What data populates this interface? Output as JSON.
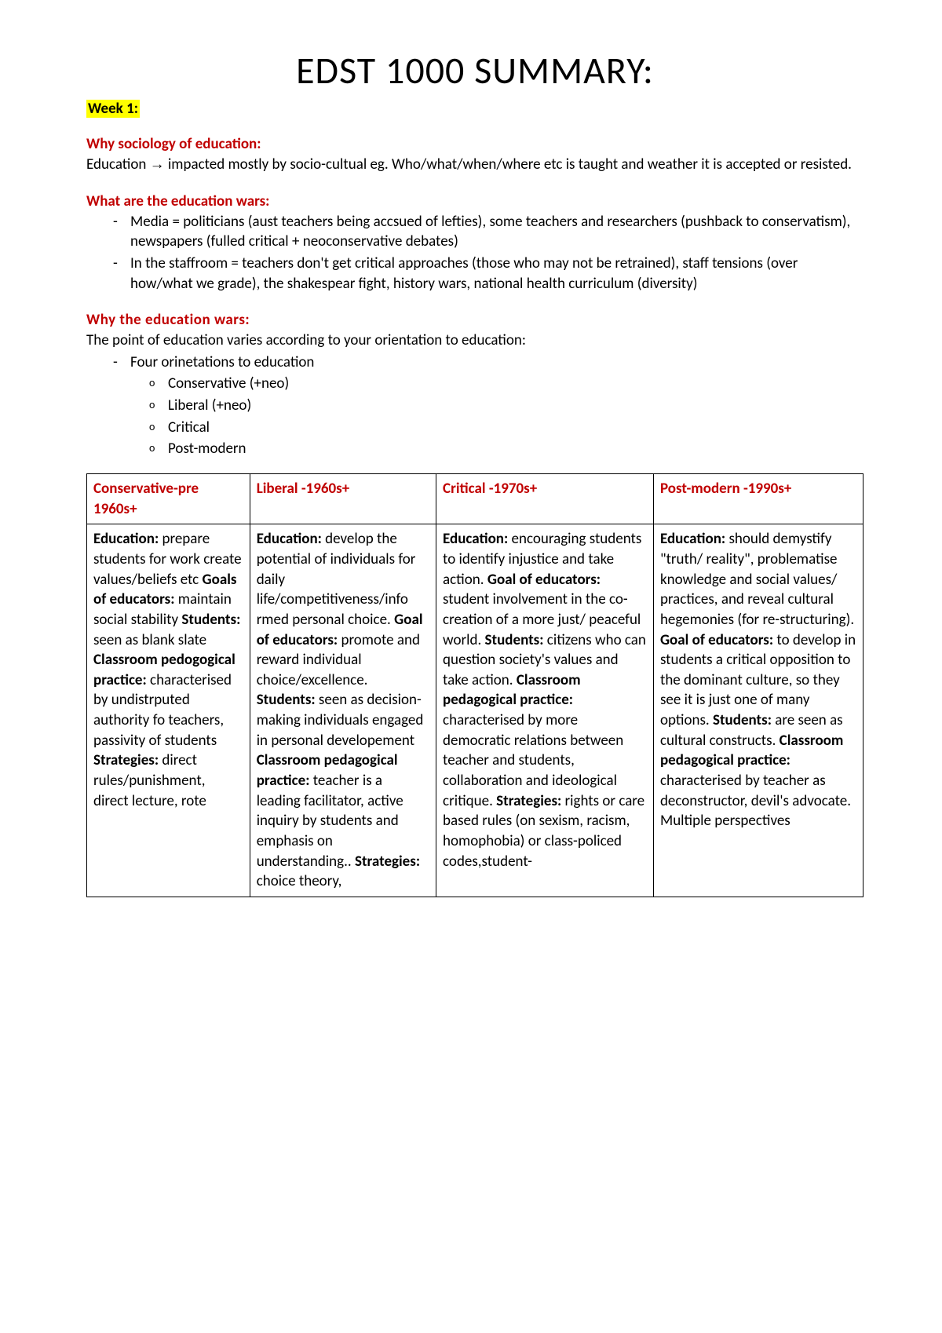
{
  "title": "EDST 1000 SUMMARY:",
  "week_label": "Week 1:",
  "sections": {
    "why_sociology": {
      "heading": "Why sociology of education:",
      "body_pre": "Education ",
      "arrow": "→",
      "body_post": " impacted mostly by socio-cultual eg. Who/what/when/where etc is taught and weather it is accepted or resisted."
    },
    "what_wars": {
      "heading": "What are the education wars:",
      "bullets": [
        "Media = politicians (aust teachers being accsued of lefties), some teachers and researchers (pushback to conservatism), newspapers (fulled critical + neoconservative debates)",
        "In the staffroom = teachers don't get critical approaches (those who may not be retrained), staff tensions (over how/what we grade), the shakespear fight, history wars, national health curriculum (diversity)"
      ]
    },
    "why_wars": {
      "heading": "Why the education wars:",
      "intro": "The point of education varies according to your orientation to education:",
      "bullet": "Four orinetations to education",
      "subbullets": [
        "Conservative (+neo)",
        "Liberal (+neo)",
        "Critical",
        "Post-modern"
      ]
    }
  },
  "table": {
    "headers": [
      "Conservative-pre 1960s+",
      "Liberal -1960s+",
      "Critical -1970s+",
      "Post-modern -1990s+"
    ],
    "cells": {
      "c1": {
        "parts": [
          {
            "b": "Education:",
            "t": " prepare students for work create values/beliefs etc"
          },
          {
            "b": "Goals of educators:",
            "t": " maintain social stability"
          },
          {
            "b": "Students:",
            "t": " seen as blank slate"
          },
          {
            "b": "Classroom pedogogical practice:",
            "t": " characterised by undistrputed authority fo teachers, passivity of students"
          },
          {
            "b": "Strategies:",
            "t": " direct rules/punishment, direct lecture, rote"
          }
        ]
      },
      "c2": {
        "parts": [
          {
            "b": "Education:",
            "t": " develop the potential of individuals for daily life/competitiveness/info rmed personal choice."
          },
          {
            "b": "Goal of educators:",
            "t": " promote and reward individual choice/excellence."
          },
          {
            "b": "Students:",
            "t": " seen as decision-making individuals engaged in personal developement"
          },
          {
            "b": "Classroom pedagogical practice:",
            "t": " teacher is a leading facilitator, active inquiry by students and emphasis on understanding.."
          },
          {
            "b": "Strategies:",
            "t": " choice theory,"
          }
        ]
      },
      "c3": {
        "parts": [
          {
            "b": "Education:",
            "t": " encouraging students to identify injustice and take action."
          },
          {
            "b": "Goal of educators:",
            "t": " student involvement in the co-creation of a more just/ peaceful world."
          },
          {
            "b": "Students:",
            "t": " citizens who can question society's values and take action."
          },
          {
            "b": "Classroom pedagogical practice:",
            "t": " characterised by more democratic relations between teacher and students, collaboration and ideological critique."
          },
          {
            "b": "Strategies:",
            "t": " rights or care based rules (on sexism, racism, homophobia) or class-policed codes,student-"
          }
        ]
      },
      "c4": {
        "parts": [
          {
            "b": "Education:",
            "t": " should demystify \"truth/ reality\", problematise knowledge and social values/ practices, and reveal cultural hegemonies (for re-structuring)."
          },
          {
            "b": "Goal of educators:",
            "t": " to develop in students a critical opposition to the dominant culture, so they see it is just one of many options."
          },
          {
            "b": "Students:",
            "t": " are seen as cultural constructs."
          },
          {
            "b": "Classroom pedagogical practice:",
            "t": " characterised by teacher as deconstructor, devil's advocate. Multiple perspectives"
          }
        ]
      }
    }
  },
  "colors": {
    "heading": "#c00000",
    "highlight": "#ffff00",
    "text": "#000000",
    "border": "#000000",
    "background": "#ffffff"
  }
}
